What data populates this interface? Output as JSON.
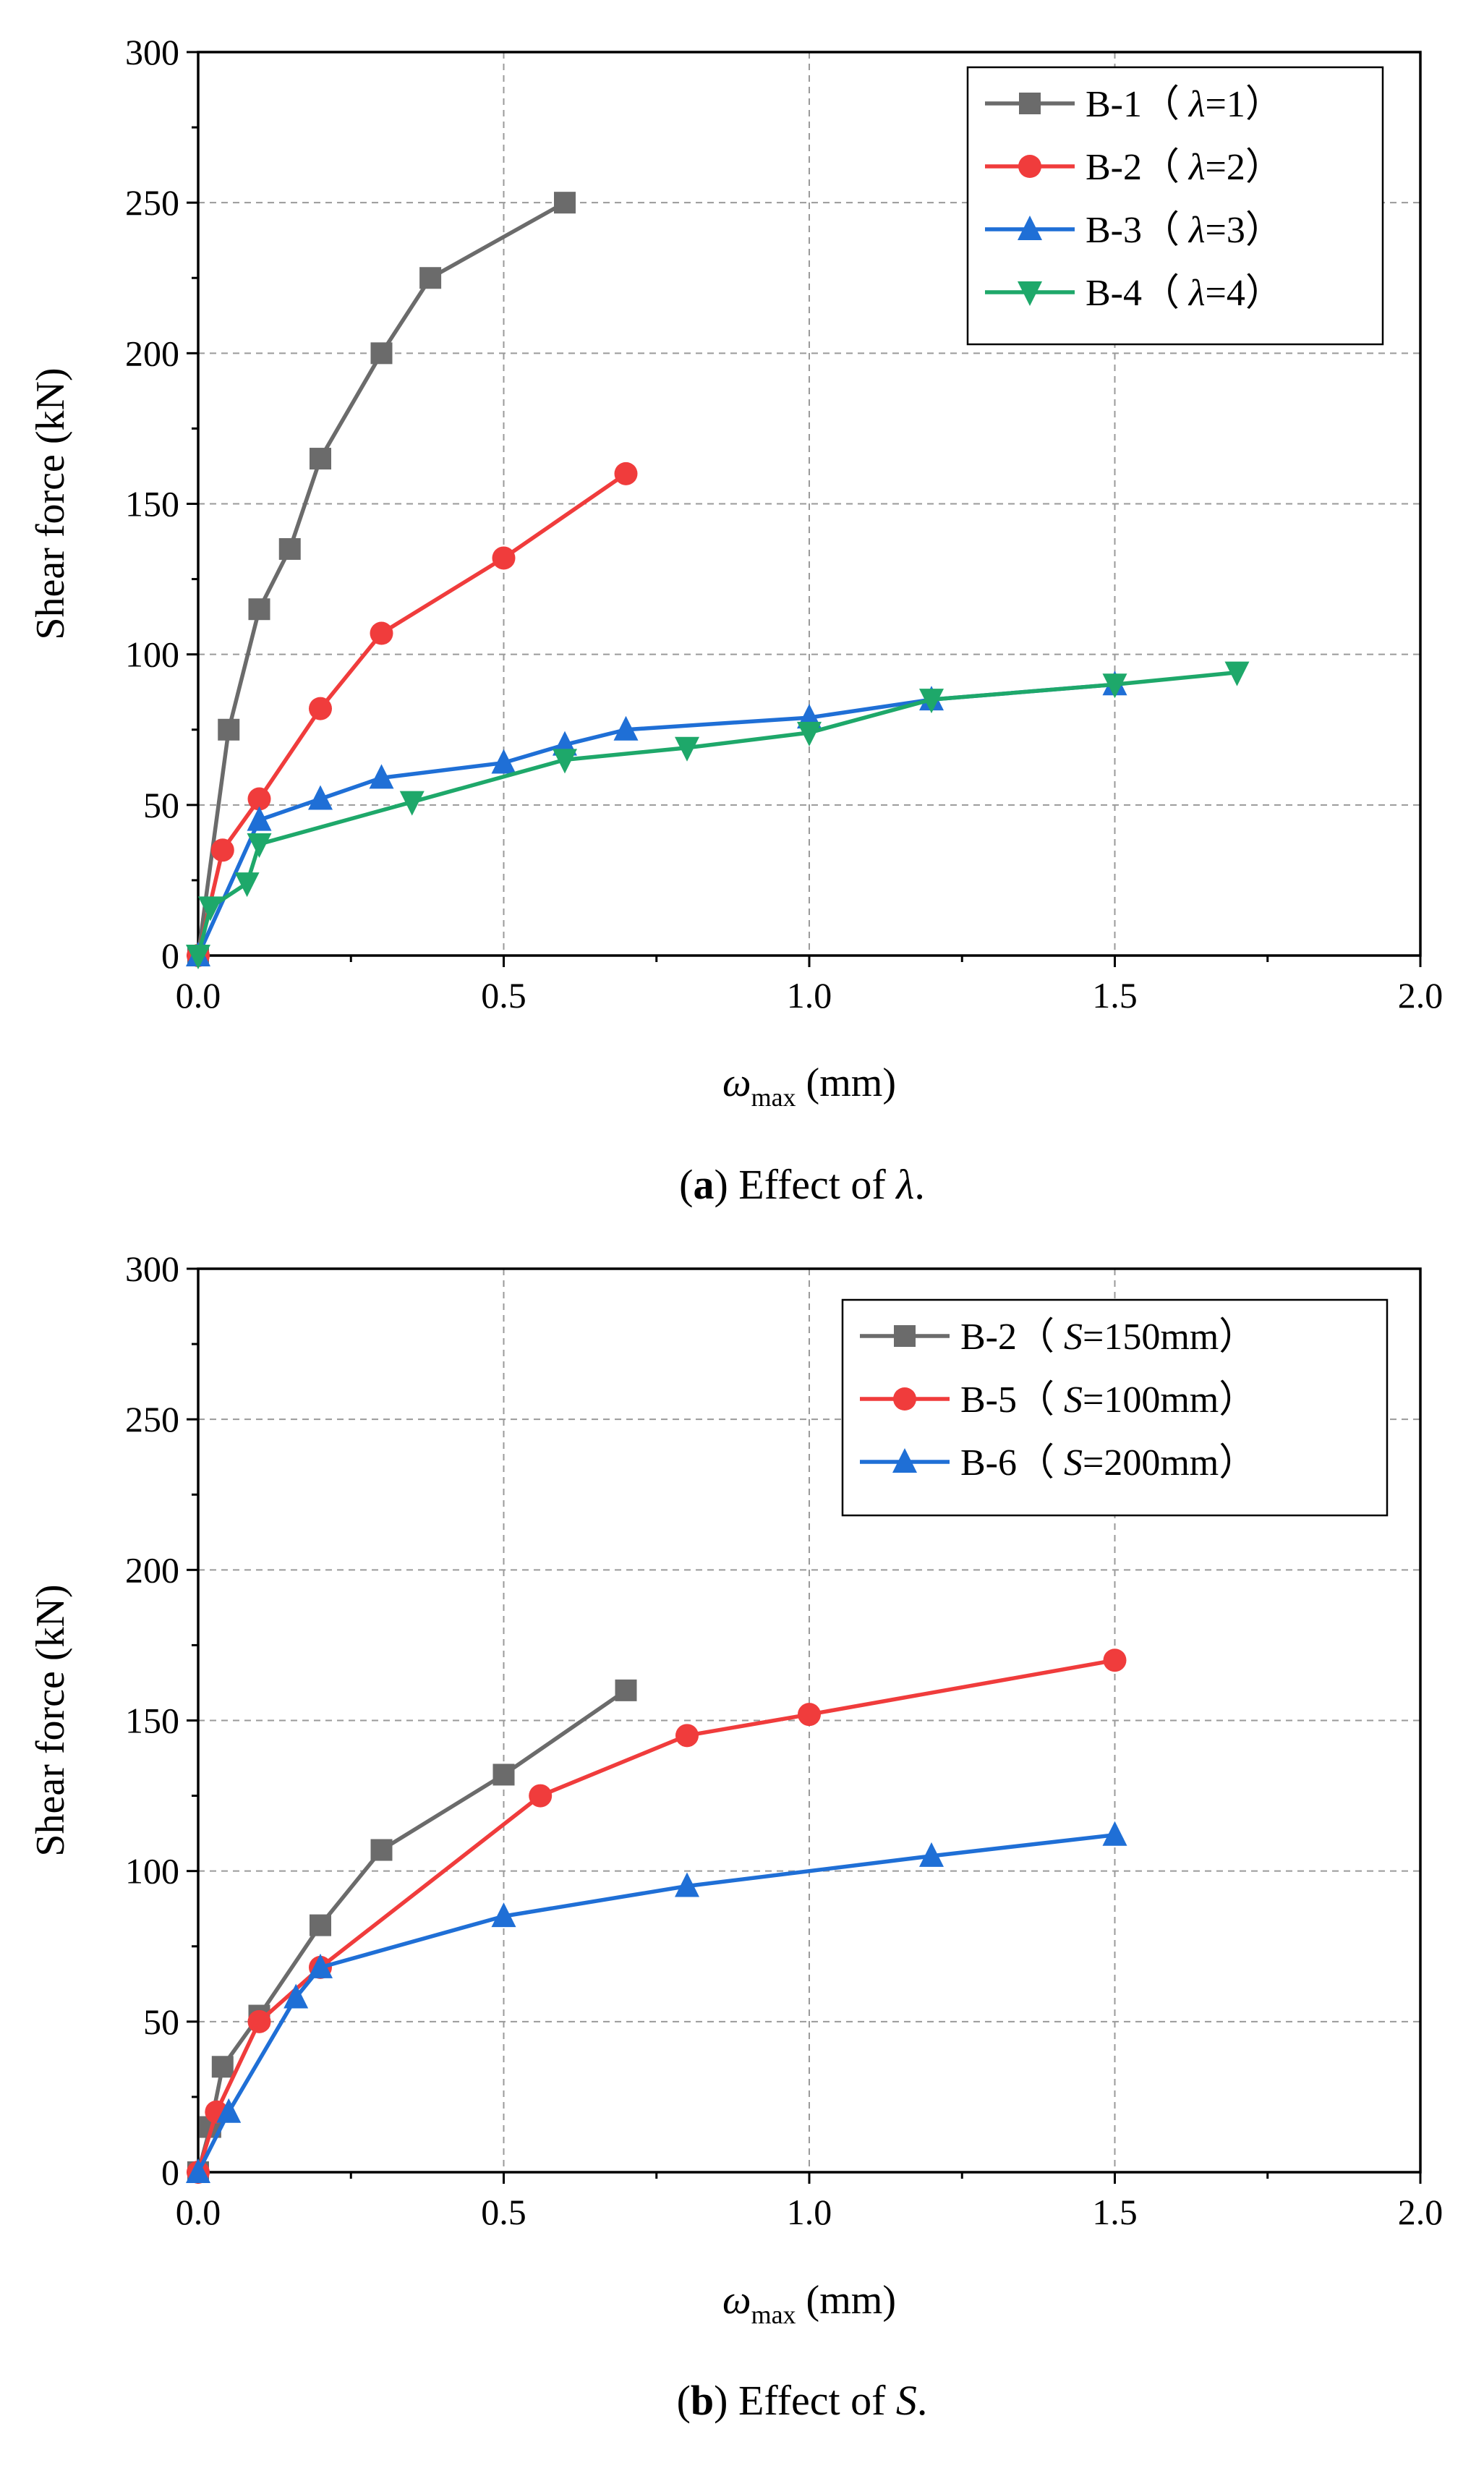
{
  "chart_data": [
    {
      "type": "line",
      "panel": "a",
      "caption_label": "(a)",
      "caption_text": "Effect of ",
      "caption_symbol": "λ",
      "caption_end": ".",
      "xlabel_symbol": "ω",
      "xlabel_sub": "max",
      "xlabel_unit": " (mm)",
      "ylabel": "Shear force (kN)",
      "xlim": [
        0,
        2.0
      ],
      "ylim": [
        0,
        300
      ],
      "xticks": [
        0.0,
        0.5,
        1.0,
        1.5,
        2.0
      ],
      "xtick_labels": [
        "0.0",
        "0.5",
        "1.0",
        "1.5",
        "2.0"
      ],
      "yticks": [
        0,
        50,
        100,
        150,
        200,
        250,
        300
      ],
      "ytick_labels": [
        "0",
        "50",
        "100",
        "150",
        "200",
        "250",
        "300"
      ],
      "grid": true,
      "legend_position": "top-right",
      "series": [
        {
          "name": "B-1",
          "param": "λ",
          "param_value": "1",
          "label": "B-1（ λ=1）",
          "color": "#6b6b6b",
          "marker": "square",
          "x": [
            0,
            0.05,
            0.1,
            0.15,
            0.2,
            0.3,
            0.38,
            0.6
          ],
          "y": [
            0,
            75,
            115,
            135,
            165,
            200,
            225,
            250
          ]
        },
        {
          "name": "B-2",
          "param": "λ",
          "param_value": "2",
          "label": "B-2（ λ=2）",
          "color": "#f03c3c",
          "marker": "circle",
          "x": [
            0,
            0.04,
            0.1,
            0.2,
            0.3,
            0.5,
            0.7
          ],
          "y": [
            0,
            35,
            52,
            82,
            107,
            132,
            160
          ]
        },
        {
          "name": "B-3",
          "param": "λ",
          "param_value": "3",
          "label": "B-3（ λ=3）",
          "color": "#1f6fd6",
          "marker": "triangle-up",
          "x": [
            0,
            0.1,
            0.2,
            0.3,
            0.5,
            0.6,
            0.7,
            1.0,
            1.2,
            1.5
          ],
          "y": [
            0,
            45,
            52,
            59,
            64,
            70,
            75,
            79,
            85,
            90
          ]
        },
        {
          "name": "B-4",
          "param": "λ",
          "param_value": "4",
          "label": "B-4（ λ=4）",
          "color": "#1ea86a",
          "marker": "triangle-down",
          "x": [
            0,
            0.02,
            0.08,
            0.1,
            0.35,
            0.6,
            0.8,
            1.0,
            1.2,
            1.5,
            1.7
          ],
          "y": [
            0,
            16,
            24,
            37,
            51,
            65,
            69,
            74,
            85,
            90,
            94
          ]
        }
      ]
    },
    {
      "type": "line",
      "panel": "b",
      "caption_label": "(b)",
      "caption_text": "Effect of ",
      "caption_symbol": "S",
      "caption_end": ".",
      "xlabel_symbol": "ω",
      "xlabel_sub": "max",
      "xlabel_unit": " (mm)",
      "ylabel": "Shear force (kN)",
      "xlim": [
        0,
        2.0
      ],
      "ylim": [
        0,
        300
      ],
      "xticks": [
        0.0,
        0.5,
        1.0,
        1.5,
        2.0
      ],
      "xtick_labels": [
        "0.0",
        "0.5",
        "1.0",
        "1.5",
        "2.0"
      ],
      "yticks": [
        0,
        50,
        100,
        150,
        200,
        250,
        300
      ],
      "ytick_labels": [
        "0",
        "50",
        "100",
        "150",
        "200",
        "250",
        "300"
      ],
      "grid": true,
      "legend_position": "top-right",
      "series": [
        {
          "name": "B-2",
          "param": "S",
          "param_value": "150mm",
          "label": "B-2（ S=150mm）",
          "color": "#6b6b6b",
          "marker": "square",
          "x": [
            0,
            0.02,
            0.04,
            0.1,
            0.2,
            0.3,
            0.5,
            0.7
          ],
          "y": [
            0,
            15,
            35,
            52,
            82,
            107,
            132,
            160
          ]
        },
        {
          "name": "B-5",
          "param": "S",
          "param_value": "100mm",
          "label": "B-5（ S=100mm）",
          "color": "#f03c3c",
          "marker": "circle",
          "x": [
            0,
            0.03,
            0.1,
            0.2,
            0.56,
            0.8,
            1.0,
            1.5
          ],
          "y": [
            0,
            20,
            50,
            68,
            125,
            145,
            152,
            170
          ]
        },
        {
          "name": "B-6",
          "param": "S",
          "param_value": "200mm",
          "label": "B-6（ S=200mm）",
          "color": "#1f6fd6",
          "marker": "triangle-up",
          "x": [
            0,
            0.05,
            0.16,
            0.2,
            0.5,
            0.8,
            1.2,
            1.5
          ],
          "y": [
            0,
            20,
            58,
            68,
            85,
            95,
            105,
            112
          ]
        }
      ]
    }
  ]
}
